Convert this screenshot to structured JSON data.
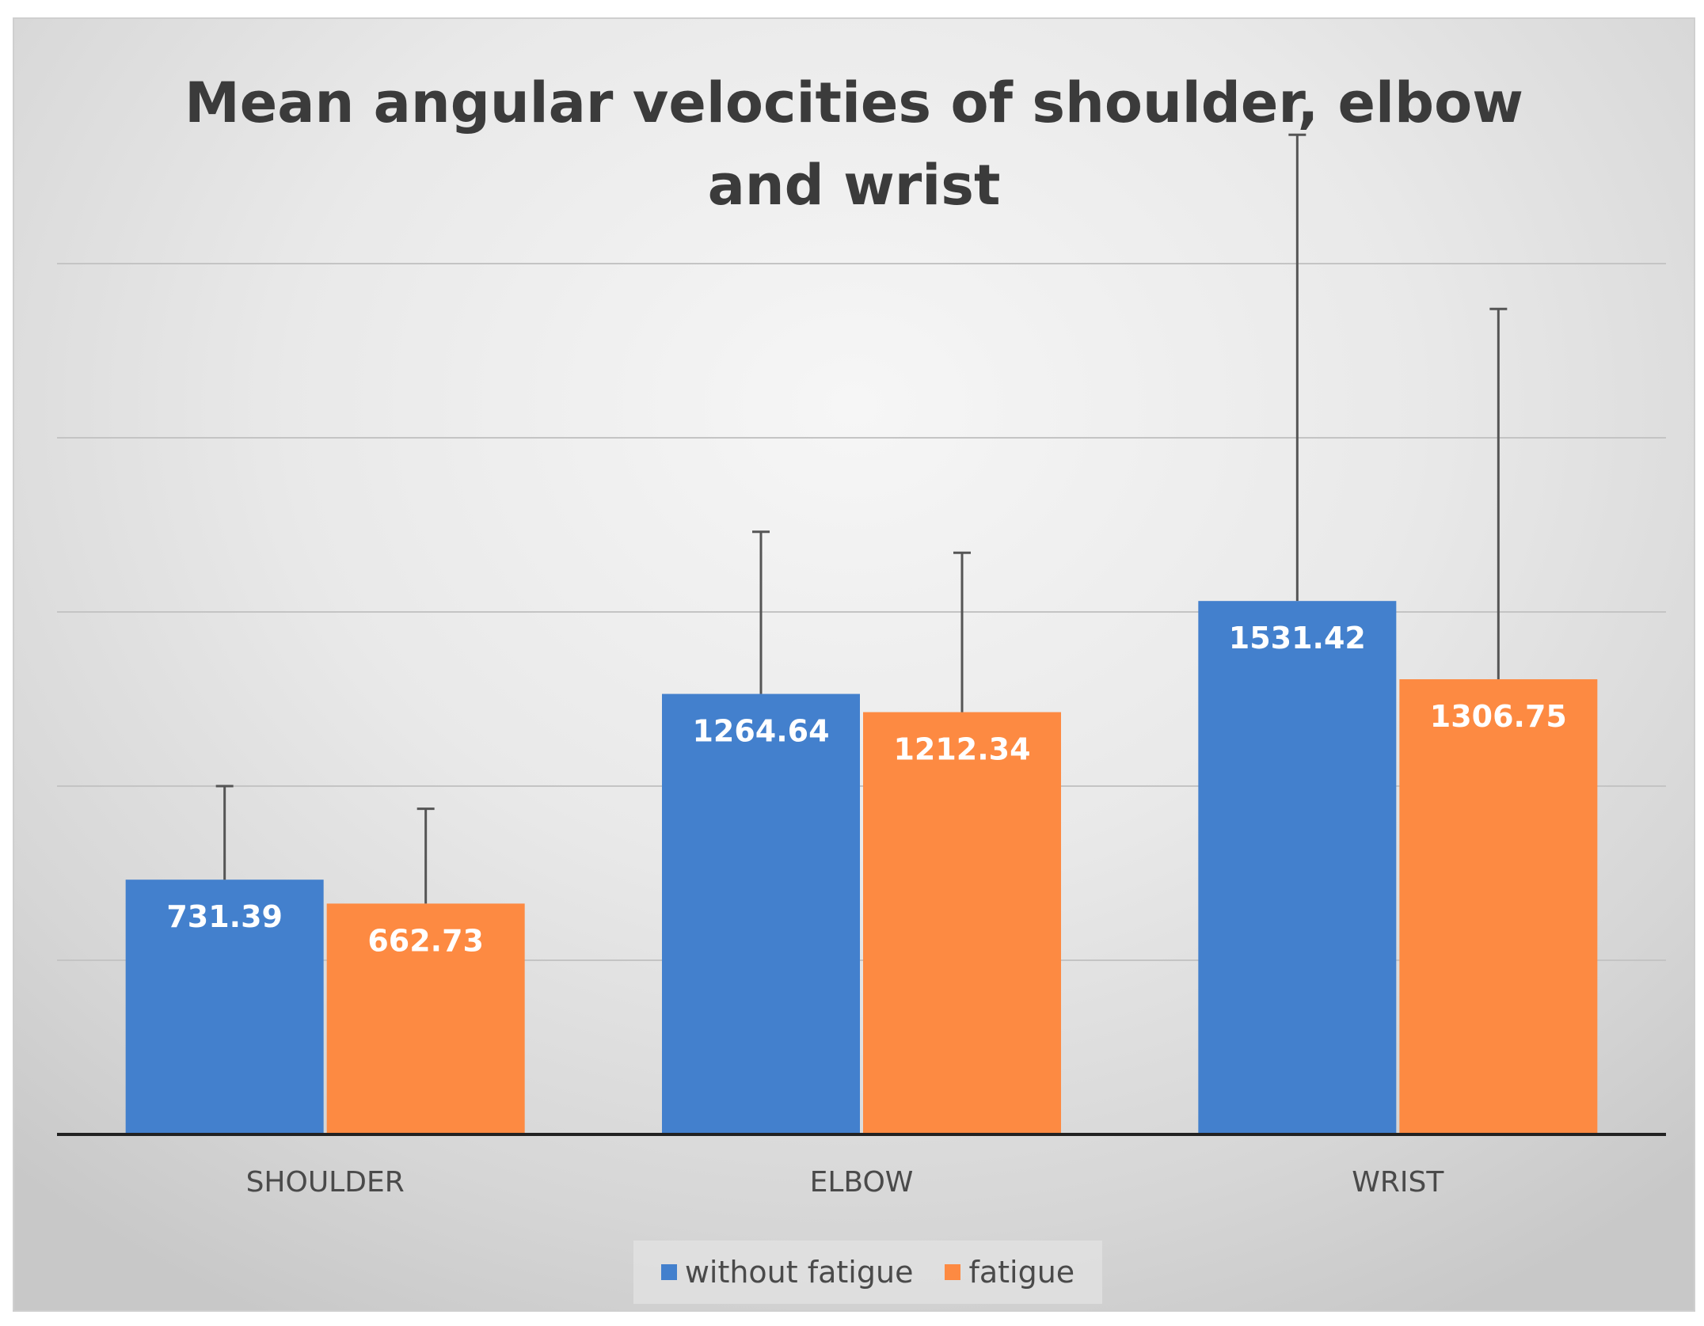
{
  "chart_data": {
    "type": "bar",
    "title": "Mean angular velocities of shoulder, elbow and wrist",
    "title_lines": [
      "Mean angular velocities of shoulder, elbow",
      "and wrist"
    ],
    "categories": [
      "SHOULDER",
      "ELBOW",
      "WRIST"
    ],
    "series": [
      {
        "name": "without fatigue",
        "color": "#4380cd",
        "values": [
          731.39,
          1264.64,
          1531.42
        ],
        "error_upper": [
          1000,
          1730,
          2870
        ],
        "labels": [
          "731.39",
          "1264.64",
          "1531.42"
        ]
      },
      {
        "name": "fatigue",
        "color": "#fd8a42",
        "values": [
          662.73,
          1212.34,
          1306.75
        ],
        "error_upper": [
          935,
          1670,
          2370
        ],
        "labels": [
          "662.73",
          "1212.34",
          "1306.75"
        ]
      }
    ],
    "ylim": [
      0,
      2500
    ],
    "gridlines": [
      500,
      1000,
      1500,
      2000,
      2500
    ],
    "y_ticks_visible": false,
    "grid": true,
    "legend_position": "bottom"
  }
}
